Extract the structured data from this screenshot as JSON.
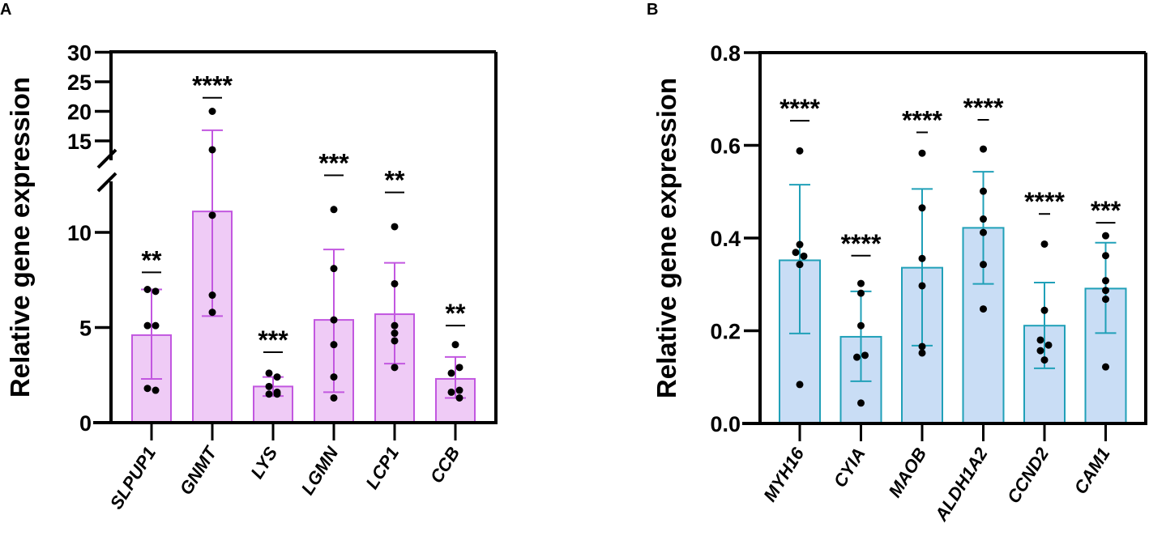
{
  "chart_data": [
    {
      "type": "bar",
      "panel_label": "A",
      "ylabel": "Relative gene expression",
      "xlabel": "",
      "ylim": [
        0,
        30
      ],
      "axis_break": [
        12.5,
        13.5
      ],
      "yticks": [
        "0",
        "5",
        "10",
        "15",
        "20",
        "25",
        "30"
      ],
      "ytick_values": [
        0,
        5,
        10,
        15,
        20,
        25,
        30
      ],
      "categories": [
        "SLPUP1",
        "GNMT",
        "LYS",
        "LGMN",
        "LCP1",
        "CCB"
      ],
      "values": [
        4.6,
        11.1,
        1.9,
        5.4,
        5.7,
        2.3
      ],
      "error_low": [
        2.3,
        5.6,
        1.4,
        1.6,
        3.1,
        1.3
      ],
      "error_high": [
        7.0,
        16.8,
        2.4,
        9.1,
        8.4,
        3.45
      ],
      "points": [
        [
          7.0,
          6.9,
          5.1,
          5.1,
          1.8,
          1.7
        ],
        [
          20.0,
          13.5,
          10.9,
          6.7,
          5.8
        ],
        [
          2.6,
          2.4,
          1.9,
          1.6,
          1.5,
          1.5
        ],
        [
          11.2,
          8.1,
          5.4,
          4.1,
          2.4,
          1.3
        ],
        [
          10.3,
          7.3,
          5.1,
          4.7,
          4.3,
          2.9
        ],
        [
          4.1,
          2.9,
          2.6,
          1.7,
          1.6,
          1.3
        ]
      ],
      "significance": [
        "**",
        "****",
        "***",
        "***",
        "**",
        "**"
      ],
      "significance_level": [
        7.9,
        22.3,
        3.7,
        13.0,
        12.1,
        5.1
      ],
      "fill_color": "#efcbf6",
      "stroke_color": "#c257e0"
    },
    {
      "type": "bar",
      "panel_label": "B",
      "ylabel": "Relative gene expression",
      "xlabel": "",
      "ylim": [
        0,
        0.8
      ],
      "yticks": [
        "0.0",
        "0.2",
        "0.4",
        "0.6",
        "0.8"
      ],
      "ytick_values": [
        0,
        0.2,
        0.4,
        0.6,
        0.8
      ],
      "categories": [
        "MYH16",
        "CYIA",
        "MAOB",
        "ALDH1A2",
        "CCND2",
        "CAM1"
      ],
      "values": [
        0.352,
        0.187,
        0.336,
        0.422,
        0.211,
        0.291
      ],
      "error_low": [
        0.194,
        0.091,
        0.168,
        0.301,
        0.119,
        0.195
      ],
      "error_high": [
        0.515,
        0.285,
        0.506,
        0.543,
        0.304,
        0.39
      ],
      "points": [
        [
          0.588,
          0.386,
          0.369,
          0.361,
          0.343,
          0.084
        ],
        [
          0.302,
          0.281,
          0.211,
          0.147,
          0.143,
          0.044
        ],
        [
          0.583,
          0.465,
          0.356,
          0.297,
          0.166,
          0.152
        ],
        [
          0.592,
          0.501,
          0.441,
          0.412,
          0.343,
          0.247
        ],
        [
          0.387,
          0.244,
          0.18,
          0.169,
          0.157,
          0.137
        ],
        [
          0.405,
          0.362,
          0.308,
          0.287,
          0.268,
          0.122
        ]
      ],
      "significance": [
        "****",
        "****",
        "****",
        "****",
        "****",
        "***"
      ],
      "significance_level": [
        0.653,
        0.362,
        0.628,
        0.655,
        0.452,
        0.433
      ],
      "fill_color": "#c9ddf5",
      "stroke_color": "#20a0b8"
    }
  ]
}
